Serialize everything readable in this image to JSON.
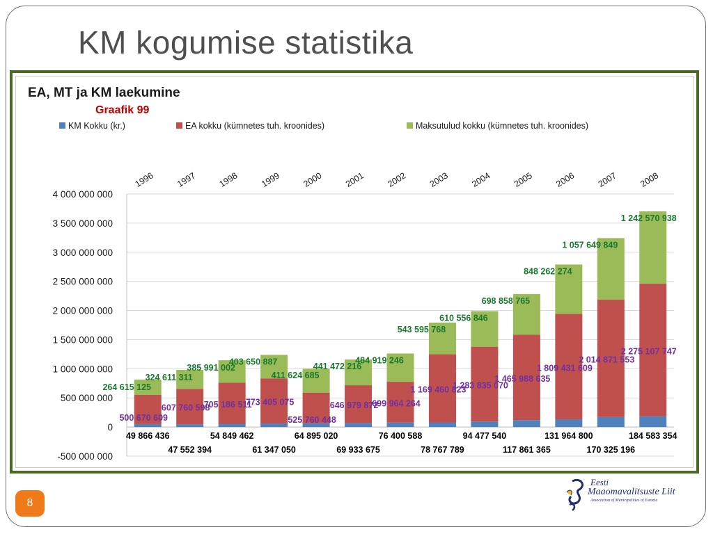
{
  "slide": {
    "title": "KM kogumise statistika",
    "page_number": "8",
    "logo": {
      "line1": "Eesti",
      "line2": "Maaomavalitsuste Liit",
      "line3": "Association of Municipalities of Estonia"
    }
  },
  "chart_data": {
    "type": "bar",
    "stacked": true,
    "title": "EA, MT ja KM laekumine",
    "subtitle": "Graafik 99",
    "categories": [
      "1996",
      "1997",
      "1998",
      "1999",
      "2000",
      "2001",
      "2002",
      "2003",
      "2004",
      "2005",
      "2006",
      "2007",
      "2008"
    ],
    "ylim": [
      -500000000,
      4000000000
    ],
    "yticks": [
      "4 000 000 000",
      "3 500 000 000",
      "3 000 000 000",
      "2 500 000 000",
      "2 000 000 000",
      "1 500 000 000",
      "1 000 000 000",
      "500 000 000",
      "0",
      "-500 000 000"
    ],
    "legend_position": "top",
    "grid": true,
    "series": [
      {
        "name": "KM Kokku (kr.)",
        "color": "#4f81bd",
        "label_color": "#000000",
        "values": [
          49866436,
          47552394,
          54849462,
          61347050,
          64895020,
          69933675,
          76400588,
          78767789,
          94477540,
          117861365,
          131964800,
          170325196,
          184583354
        ],
        "labels": [
          "49 866 436",
          "47 552 394",
          "54 849 462",
          "61 347 050",
          "64 895 020",
          "69 933 675",
          "76 400 588",
          "78 767 789",
          "94 477 540",
          "117 861 365",
          "131 964 800",
          "170 325 196",
          "184 583 354"
        ]
      },
      {
        "name": "EA kokku (kümnetes tuh. kroonides)",
        "color": "#c0504d",
        "label_color": "#7030a0",
        "values": [
          500670609,
          607760598,
          705186511,
          773405075,
          525760448,
          646979872,
          699964264,
          1169460823,
          1283835070,
          1465988635,
          1809431609,
          2014871553,
          2275107747
        ],
        "labels": [
          "500 670 609",
          "607 760 598",
          "705 186 511",
          "773 405 075",
          "525 760 448",
          "646 979 872",
          "699 964 264",
          "1 169 460 823",
          "1 283 835 070",
          "1 465 988 635",
          "1 809 431 609",
          "2 014 871 553",
          "2 275 107 747"
        ]
      },
      {
        "name": "Maksutulud kokku (kümnetes tuh. kroonides)",
        "color": "#9bbb59",
        "label_color": "#1a7a2e",
        "values": [
          264615125,
          324611311,
          385991002,
          403650887,
          411624685,
          441472216,
          484919246,
          543595768,
          610556846,
          698858765,
          848262274,
          1057649849,
          1242570938
        ],
        "labels": [
          "264 615 125",
          "324 611 311",
          "385 991 002",
          "403 650 887",
          "411 624 685",
          "441 472 216",
          "484 919 246",
          "543 595 768",
          "610 556 846",
          "698 858 765",
          "848 262 274",
          "1 057 649 849",
          "1 242 570 938"
        ]
      }
    ]
  }
}
